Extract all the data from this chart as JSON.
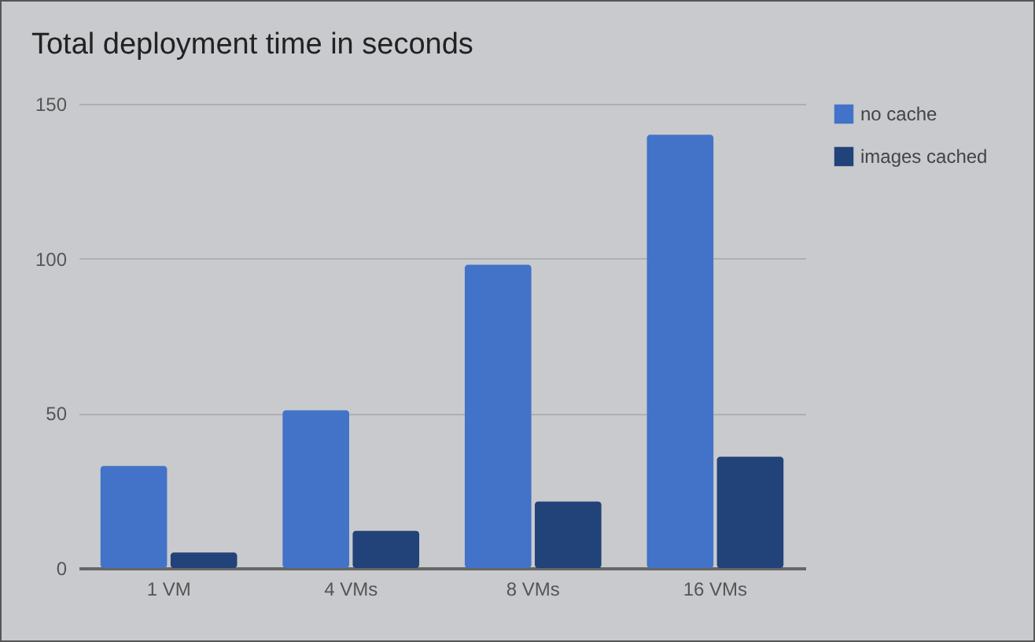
{
  "chart_data": {
    "type": "bar",
    "title": "Total deployment time in seconds",
    "categories": [
      "1 VM",
      "4 VMs",
      "8 VMs",
      "16 VMs"
    ],
    "series": [
      {
        "name": "no cache",
        "color": "#4273c8",
        "values": [
          33,
          51,
          98,
          140
        ]
      },
      {
        "name": "images cached",
        "color": "#22427a",
        "values": [
          5,
          12,
          21.5,
          36
        ]
      }
    ],
    "ylim": [
      0,
      150
    ],
    "yticks": [
      0,
      50,
      100,
      150
    ],
    "grid": "y",
    "legend": "top right"
  }
}
